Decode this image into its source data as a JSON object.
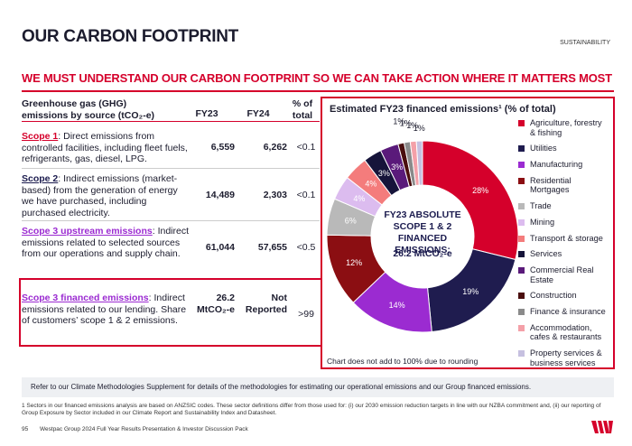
{
  "header": {
    "title": "OUR CARBON FOOTPRINT",
    "section": "SUSTAINABILITY",
    "headline": "WE MUST UNDERSTAND OUR CARBON FOOTPRINT SO WE CAN TAKE ACTION WHERE IT MATTERS MOST"
  },
  "table": {
    "columns": [
      "Greenhouse gas (GHG) emissions by source (tCO₂-e)",
      "FY23",
      "FY24",
      "% of total"
    ],
    "rows": [
      {
        "name": "Scope 1",
        "description": ": Direct emissions from controlled facilities, including fleet fuels, refrigerants, gas, diesel, LPG.",
        "fy23": "6,559",
        "fy24": "6,262",
        "share": "<0.1"
      },
      {
        "name": "Scope 2",
        "description": ": Indirect emissions (market-based) from the generation of energy we have purchased, including purchased electricity.",
        "fy23": "14,489",
        "fy24": "2,303",
        "share": "<0.1"
      },
      {
        "name": "Scope 3 upstream emissions",
        "description": ": Indirect emissions related to selected sources from our operations and supply chain.",
        "fy23": "61,044",
        "fy24": "57,655",
        "share": "<0.5"
      },
      {
        "name": "Scope 3 financed emissions",
        "description": ": Indirect emissions related to our lending.  Share of customers’ scope 1 & 2 emissions.",
        "fy23": "26.2 MtCO₂-e",
        "fy24": "Not Reported",
        "share": ">99"
      }
    ]
  },
  "chart_data": {
    "type": "donut",
    "title": "Estimated FY23 financed emissions¹ (% of total)",
    "center_title": "FY23 ABSOLUTE SCOPE 1 & 2 FINANCED EMISSIONS:",
    "center_value": "26.2 MtCO₂-e",
    "note": "Chart does not add to 100% due to rounding",
    "categories": [
      "Agriculture, forestry & fishing",
      "Utilities",
      "Manufacturing",
      "Residential Mortgages",
      "Trade",
      "Mining",
      "Transport & storage",
      "Services",
      "Commercial Real Estate",
      "Construction",
      "Finance & insurance",
      "Accommodation, cafes & restaurants",
      "Property services & business services"
    ],
    "values": [
      28,
      19,
      14,
      12,
      6,
      4,
      4,
      3,
      3,
      1,
      1,
      1,
      1
    ],
    "value_labels": [
      "28%",
      "19%",
      "14%",
      "12%",
      "6%",
      "4%",
      "4%",
      "3%",
      "3%",
      "1%",
      "1%",
      "1%",
      "1%"
    ],
    "colors": [
      "#d5002b",
      "#1f1c4f",
      "#9b2bd1",
      "#8b0e12",
      "#b9b9b9",
      "#dcbcef",
      "#f47c7c",
      "#16143a",
      "#5a1a7a",
      "#4a0e0e",
      "#8a8a8a",
      "#f4a0a8",
      "#c6c0e0"
    ]
  },
  "footer": {
    "methodology": "Refer to our Climate Methodologies Supplement for details of the methodologies for estimating our operational emissions and our Group financed emissions.",
    "footnote": "1 Sectors in our financed emissions analysis are based on ANZSIC codes. These sector definitions differ from those used for: (i) our 2030 emission reduction targets in line with our NZBA commitment and, (ii) our reporting of Group Exposure by Sector included in our Climate Report and Sustainability Index and Datasheet.",
    "page": "95",
    "deck": "Westpac Group 2024 Full Year Results Presentation & Investor Discussion Pack"
  }
}
